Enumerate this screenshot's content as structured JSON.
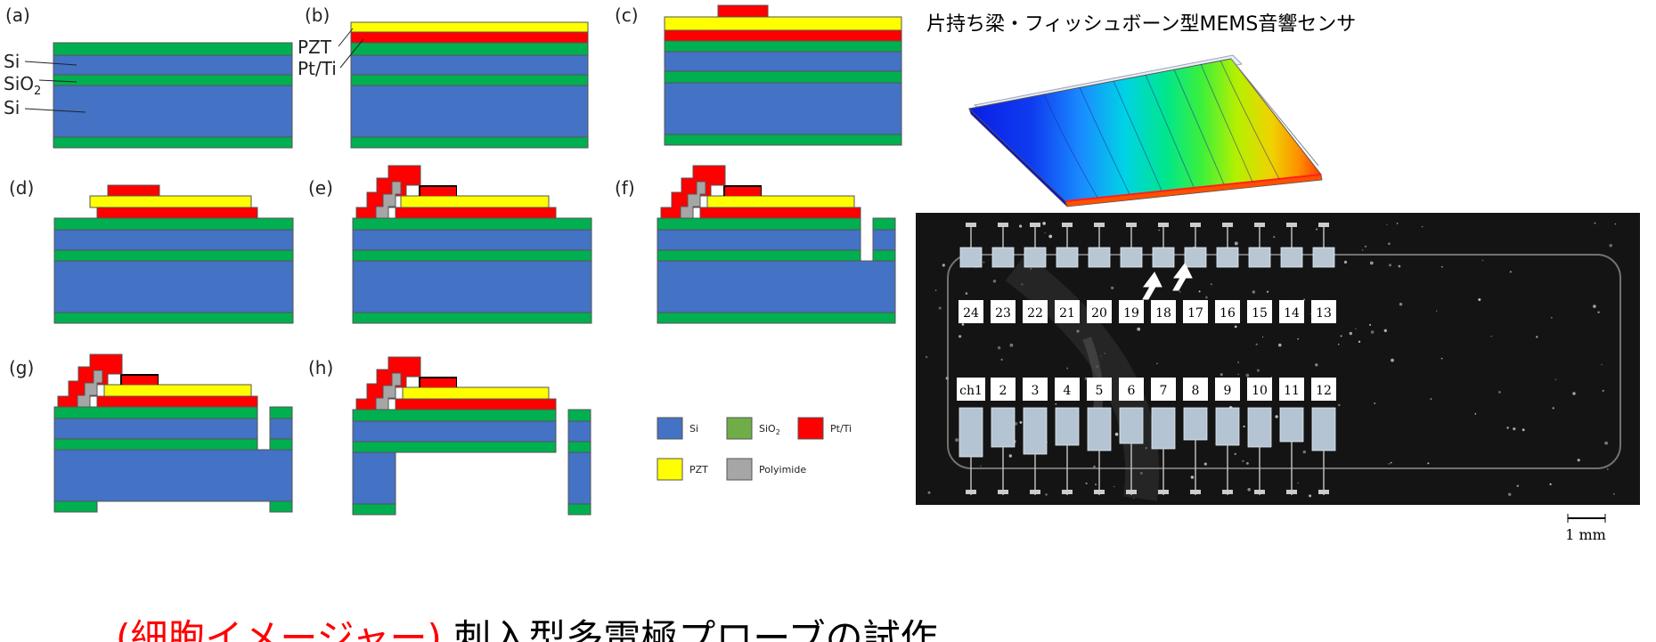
{
  "colors": {
    "si": "#4472C4",
    "sio2": "#00B050",
    "sio2_legend": "#70AD47",
    "ptti": "#FF0000",
    "pzt": "#FFFF00",
    "polyimide": "#A6A6A6",
    "title_red": "#FF0000"
  },
  "steps": {
    "a": "(a)",
    "b": "(b)",
    "c": "(c)",
    "d": "(d)",
    "e": "(e)",
    "f": "(f)",
    "g": "(g)",
    "h": "(h)"
  },
  "callouts": {
    "si_top": "Si",
    "sio2": "SiO",
    "sio2_sub": "2",
    "si_bottom": "Si",
    "pzt": "PZT",
    "ptti": "Pt/Ti"
  },
  "legend": {
    "si": "Si",
    "sio2": "SiO",
    "sio2_sub": "2",
    "ptti": "Pt/Ti",
    "pzt": "PZT",
    "polyimide": "Polyimide"
  },
  "sensor_title": "片持ち梁・フィッシュボーン型MEMS音響センサ",
  "channels": {
    "top_row": [
      "24",
      "23",
      "22",
      "21",
      "20",
      "19",
      "18",
      "17",
      "16",
      "15",
      "14",
      "13"
    ],
    "bottom_row": [
      "ch1",
      "2",
      "3",
      "4",
      "5",
      "6",
      "7",
      "8",
      "9",
      "10",
      "11",
      "12"
    ]
  },
  "scale_bar": "1 mm",
  "bottom_title": {
    "red": "(細胞イメージャー) ",
    "black": "刺入型多電極プローブの試作"
  }
}
